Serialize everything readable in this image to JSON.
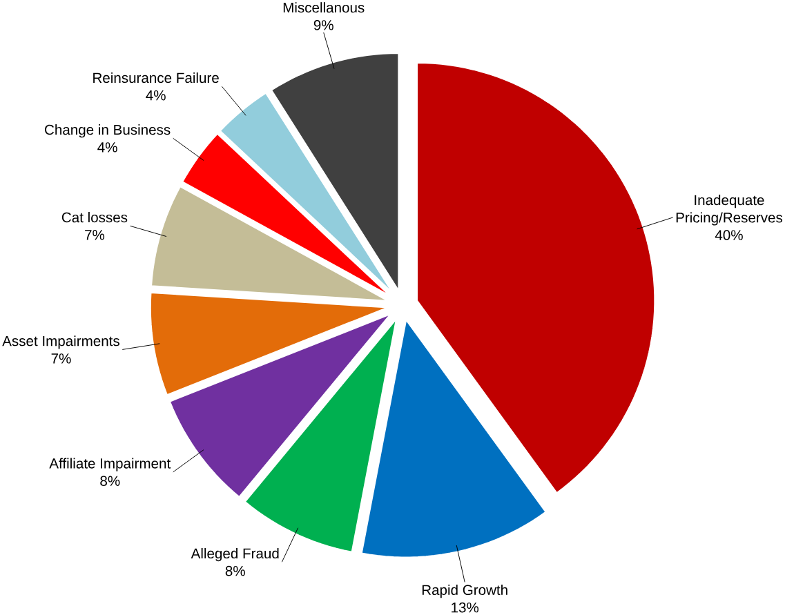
{
  "chart_data": {
    "type": "pie",
    "categories": [
      "Inadequate Pricing/Reserves",
      "Rapid Growth",
      "Alleged Fraud",
      "Affiliate Impairment",
      "Asset Impairments",
      "Cat losses",
      "Change in Business",
      "Reinsurance Failure",
      "Miscellanous"
    ],
    "values": [
      40,
      13,
      8,
      8,
      7,
      7,
      4,
      4,
      9
    ],
    "value_labels": [
      "40%",
      "13%",
      "8%",
      "8%",
      "7%",
      "7%",
      "4%",
      "4%",
      "9%"
    ],
    "colors": [
      "#c00000",
      "#0070c0",
      "#00b050",
      "#7030a0",
      "#e36c09",
      "#c4bd97",
      "#ff0000",
      "#92cddc",
      "#404040"
    ]
  }
}
